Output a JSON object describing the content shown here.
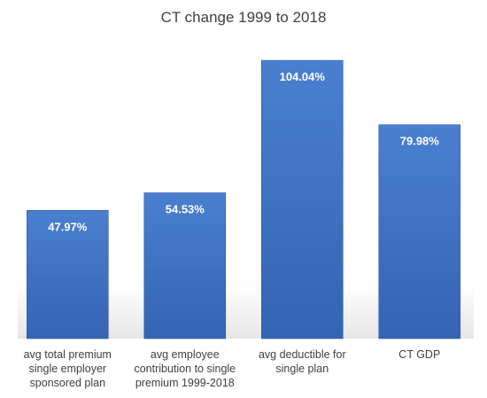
{
  "chart_data": {
    "type": "bar",
    "title": "CT change 1999 to 2018",
    "categories": [
      "avg total premium single employer sponsored plan",
      "avg employee contribution to single premium 1999-2018",
      "avg deductible for single plan",
      "CT GDP"
    ],
    "category_label_lines": [
      [
        "avg total premium",
        "single employer",
        "sponsored plan"
      ],
      [
        "avg employee",
        "contribution to single",
        "premium 1999-2018"
      ],
      [
        "avg deductible for",
        "single plan"
      ],
      [
        "CT GDP"
      ]
    ],
    "values": [
      47.97,
      54.53,
      104.04,
      79.98
    ],
    "data_labels": [
      "47.97%",
      "54.53%",
      "104.04%",
      "79.98%"
    ],
    "unit": "%",
    "ylim": [
      0,
      115
    ],
    "grid": false,
    "legend": "none",
    "colors": {
      "bar_top": "#4a7fcf",
      "bar_bottom": "#3464b4",
      "bar_edge": "#2f5aa6",
      "data_label": "#ffffff",
      "category_label": "#404040",
      "title": "#404040"
    }
  }
}
